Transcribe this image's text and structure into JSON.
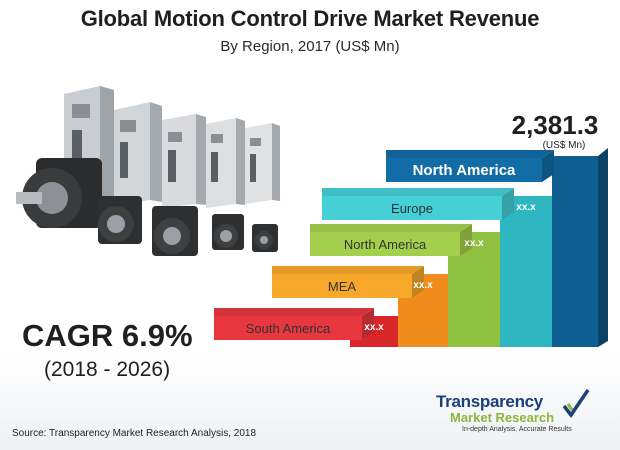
{
  "header": {
    "title": "Global Motion Control Drive Market Revenue",
    "subtitle": "By Region, 2017 (US$ Mn)"
  },
  "cagr": {
    "value": "CAGR 6.9%",
    "period": "(2018 - 2026)"
  },
  "source": "Source: Transparency Market Research Analysis, 2018",
  "logo": {
    "name": "Transparency",
    "sub": "Market Research",
    "tagline": "In-depth Analysis. Accurate Results"
  },
  "chart_data": {
    "type": "bar",
    "categories": [
      "South America",
      "MEA",
      "North America",
      "Europe",
      "North America"
    ],
    "values": [
      null,
      null,
      null,
      null,
      2381.3
    ],
    "value_labels": [
      "xx.x",
      "xx.x",
      "xx.x",
      "xx.x",
      "2,381.3"
    ],
    "unit_label": "(US$ Mn)",
    "colors": {
      "bars": [
        "#d9262b",
        "#ef8c1c",
        "#8fc03f",
        "#2eb7c1",
        "#0f5e91"
      ],
      "label_bars": [
        "#e8373f",
        "#f7a72a",
        "#a4cf4c",
        "#45cfd6",
        "#126ca6"
      ],
      "label_text": [
        "#333333",
        "#333333",
        "#333333",
        "#333333",
        "#ffffff"
      ]
    }
  }
}
